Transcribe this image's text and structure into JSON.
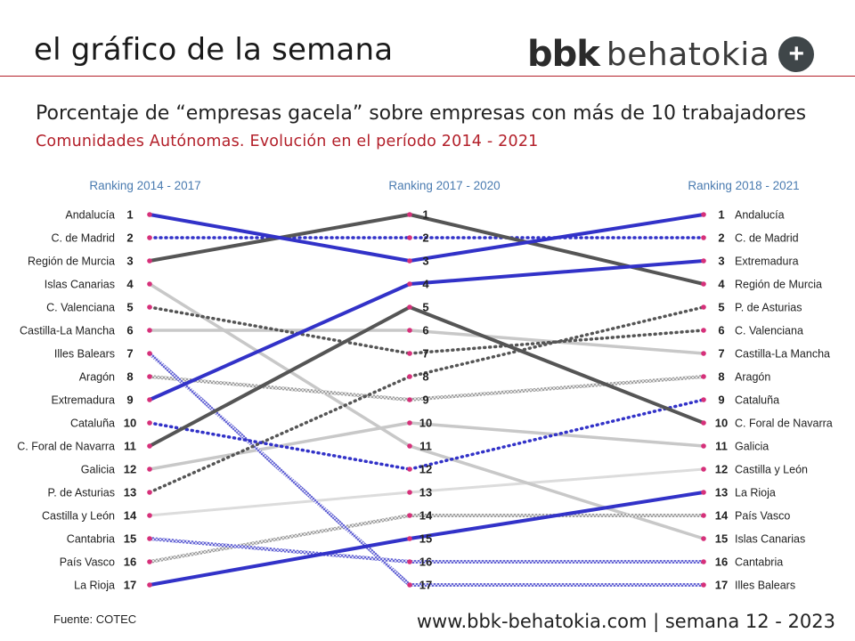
{
  "header": {
    "title": "el gráfico de la semana",
    "logo_bold": "bbk",
    "logo_text": "behatokia",
    "logo_symbol": "+"
  },
  "subtitle": "Porcentaje de “empresas gacela” sobre empresas con más de 10 trabajadores",
  "subtitle2": "Comunidades Autónomas. Evolución en el período 2014 - 2021",
  "source": "Fuente: COTEC",
  "footer": "www.bbk-behatokia.com | semana 12 - 2023",
  "colors": {
    "accent_red": "#b3202a",
    "period_label": "#4a7bb0",
    "dot": "#d6307a",
    "blue": "#3232c8",
    "dark_gray": "#555555",
    "light_gray": "#c8c8c8"
  },
  "chart_data": {
    "type": "slope",
    "periods": [
      "Ranking 2014 - 2017",
      "Ranking 2017 - 2020",
      "Ranking 2018 - 2021"
    ],
    "ranks": [
      1,
      2,
      3,
      4,
      5,
      6,
      7,
      8,
      9,
      10,
      11,
      12,
      13,
      14,
      15,
      16,
      17
    ],
    "left_labels": [
      "Andalucía",
      "C. de Madrid",
      "Región de Murcia",
      "Islas Canarias",
      "C. Valenciana",
      "Castilla-La Mancha",
      "Illes Balears",
      "Aragón",
      "Extremadura",
      "Cataluña",
      "C. Foral de Navarra",
      "Galicia",
      "P. de Asturias",
      "Castilla y León",
      "Cantabria",
      "País Vasco",
      "La Rioja"
    ],
    "right_labels": [
      "Andalucía",
      "C. de Madrid",
      "Extremadura",
      "Región de Murcia",
      "P. de Asturias",
      "C. Valenciana",
      "Castilla-La Mancha",
      "Aragón",
      "Cataluña",
      "C. Foral de Navarra",
      "Galicia",
      "Castilla y León",
      "La Rioja",
      "País Vasco",
      "Islas Canarias",
      "Cantabria",
      "Illes Balears"
    ],
    "series": [
      {
        "region": "Andalucía",
        "ranks": [
          1,
          3,
          1
        ],
        "style": "blue-solid"
      },
      {
        "region": "C. de Madrid",
        "ranks": [
          2,
          2,
          2
        ],
        "style": "blue-dotted"
      },
      {
        "region": "Región de Murcia",
        "ranks": [
          3,
          1,
          4
        ],
        "style": "dark-solid"
      },
      {
        "region": "Islas Canarias",
        "ranks": [
          4,
          11,
          15
        ],
        "style": "light-solid"
      },
      {
        "region": "C. Valenciana",
        "ranks": [
          5,
          7,
          6
        ],
        "style": "dark-dotted"
      },
      {
        "region": "Castilla-La Mancha",
        "ranks": [
          6,
          6,
          7
        ],
        "style": "light-solid"
      },
      {
        "region": "Illes Balears",
        "ranks": [
          7,
          17,
          17
        ],
        "style": "blue-hatched"
      },
      {
        "region": "Aragón",
        "ranks": [
          8,
          9,
          8
        ],
        "style": "gray-hatched"
      },
      {
        "region": "Extremadura",
        "ranks": [
          9,
          4,
          3
        ],
        "style": "blue-solid"
      },
      {
        "region": "Cataluña",
        "ranks": [
          10,
          12,
          9
        ],
        "style": "blue-dotted"
      },
      {
        "region": "C. Foral de Navarra",
        "ranks": [
          11,
          5,
          10
        ],
        "style": "dark-solid"
      },
      {
        "region": "Galicia",
        "ranks": [
          12,
          10,
          11
        ],
        "style": "light-solid"
      },
      {
        "region": "P. de Asturias",
        "ranks": [
          13,
          8,
          5
        ],
        "style": "dark-dotted"
      },
      {
        "region": "Castilla y León",
        "ranks": [
          14,
          13,
          12
        ],
        "style": "lighter-solid"
      },
      {
        "region": "Cantabria",
        "ranks": [
          15,
          16,
          16
        ],
        "style": "blue-hatched"
      },
      {
        "region": "País Vasco",
        "ranks": [
          16,
          14,
          14
        ],
        "style": "gray-hatched"
      },
      {
        "region": "La Rioja",
        "ranks": [
          17,
          15,
          13
        ],
        "style": "blue-solid"
      }
    ]
  }
}
